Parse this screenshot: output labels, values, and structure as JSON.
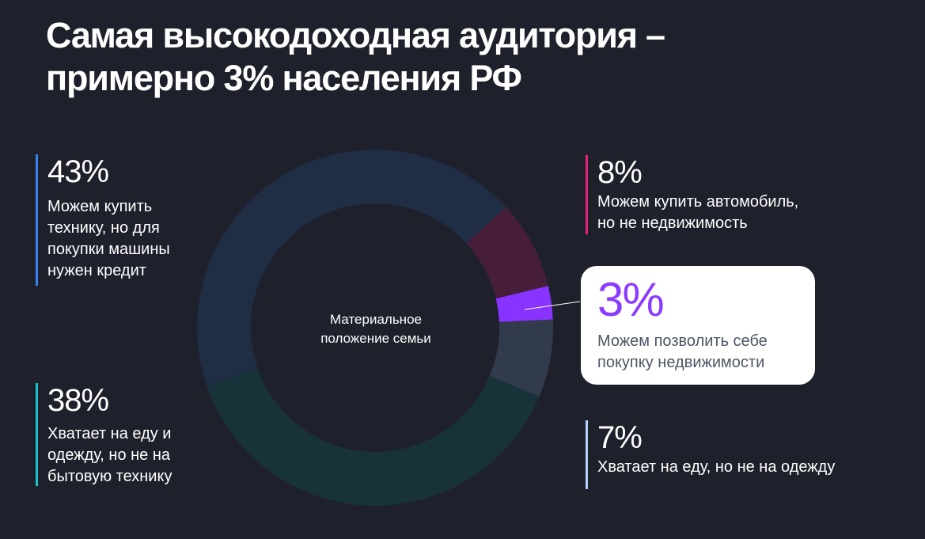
{
  "title": {
    "line1": "Самая высокодоходная аудитория –",
    "line2": "примерно 3% населения РФ"
  },
  "center_label": {
    "line1": "Материальное",
    "line2": "положение семьи"
  },
  "stats": {
    "s43": {
      "pct": "43%",
      "lines": [
        "Можем купить",
        "технику, но для",
        "покупки машины",
        "нужен кредит"
      ],
      "accent": "#3b82f6"
    },
    "s38": {
      "pct": "38%",
      "lines": [
        "Хватает на еду и",
        "одежду, но не на",
        "бытовую технику"
      ],
      "accent": "#19c2c8"
    },
    "s8": {
      "pct": "8%",
      "lines": [
        "Можем купить автомобиль,",
        "но не недвижимость"
      ],
      "accent": "#e8237f"
    },
    "s3": {
      "pct": "3%",
      "lines": [
        "Можем позволить себе",
        "покупку недвижимости"
      ],
      "accent": "#8c3cff"
    },
    "s7": {
      "pct": "7%",
      "lines": [
        "Хватает на еду, но не на одежду"
      ],
      "accent": "#b6d0ff"
    }
  },
  "colors": {
    "background": "#1e212b",
    "seg_43": "#1f2d45",
    "seg_8": "#461e3a",
    "seg_3": "#8833ff",
    "seg_7": "#323b4c",
    "seg_38": "#18323a"
  },
  "chart_data": {
    "type": "pie",
    "variant": "donut",
    "title": "Самая высокодоходная аудитория – примерно 3% населения РФ",
    "center_label": "Материальное положение семьи",
    "categories": [
      "Можем купить технику, но для покупки машины нужен кредит",
      "Можем купить автомобиль, но не недвижимость",
      "Можем позволить себе покупку недвижимости",
      "Хватает на еду, но не на одежду",
      "Хватает на еду и одежду, но не на бытовую технику"
    ],
    "values": [
      43,
      8,
      3,
      7,
      38
    ],
    "unit": "%",
    "highlighted": "Можем позволить себе покупку недвижимости",
    "legend_position": "labels around chart"
  }
}
